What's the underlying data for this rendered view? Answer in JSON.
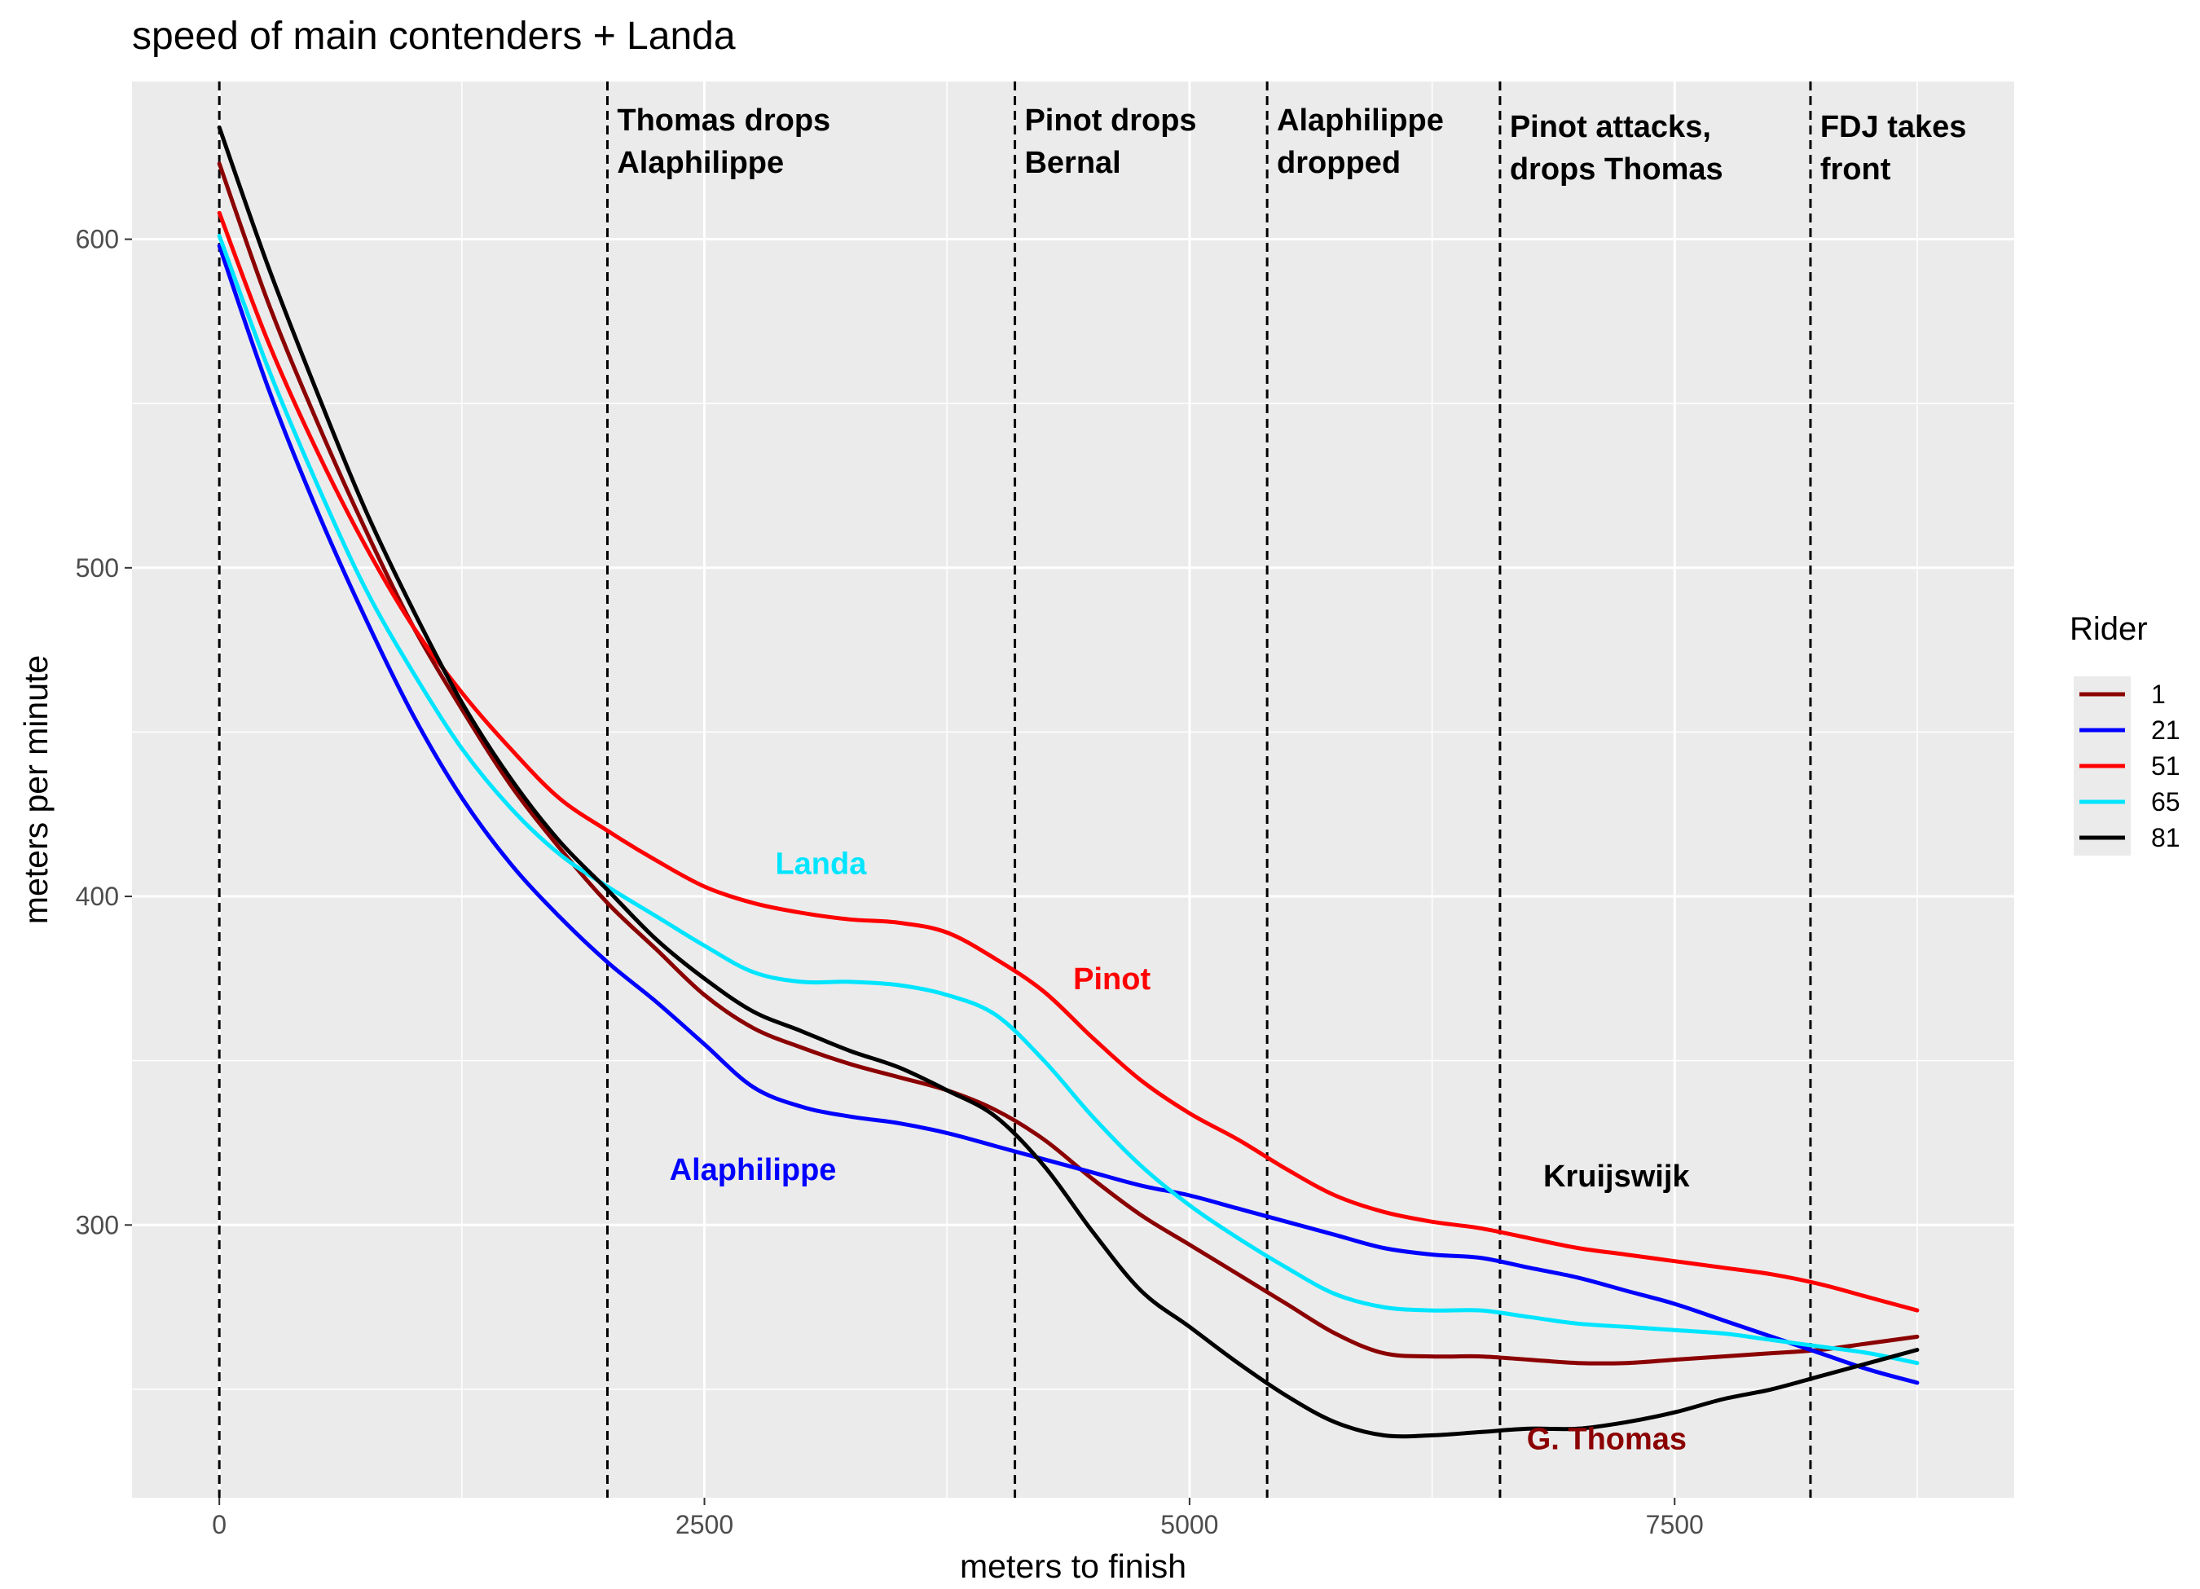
{
  "chart_data": {
    "type": "line",
    "title": "speed of main contenders + Landa",
    "xlabel": "meters to finish",
    "ylabel": "meters per minute",
    "xlim": [
      -450,
      9250
    ],
    "ylim": [
      217,
      648
    ],
    "x_ticks": [
      0,
      2500,
      5000,
      7500
    ],
    "x_minor": [
      1250,
      3750,
      6250,
      8750
    ],
    "y_ticks": [
      300,
      400,
      500,
      600
    ],
    "y_minor": [
      250,
      350,
      450,
      550
    ],
    "grid": true,
    "legend": {
      "title": "Rider",
      "position": "right",
      "entries": [
        "1",
        "21",
        "51",
        "65",
        "81"
      ]
    },
    "series": [
      {
        "name": "1",
        "color": "#8b0000",
        "x": [
          0,
          250,
          500,
          750,
          1000,
          1250,
          1500,
          1750,
          2000,
          2250,
          2500,
          2750,
          3000,
          3250,
          3500,
          3750,
          4000,
          4250,
          4500,
          4750,
          5000,
          5250,
          5500,
          5750,
          6000,
          6250,
          6500,
          6750,
          7000,
          7250,
          7500,
          7750,
          8000,
          8250,
          8500,
          8750
        ],
        "y": [
          623,
          581,
          545,
          512,
          482,
          457,
          434,
          415,
          398,
          384,
          370,
          360,
          354,
          349,
          345,
          341,
          335,
          326,
          314,
          303,
          294,
          285,
          276,
          267,
          261,
          260,
          260,
          259,
          258,
          258,
          259,
          260,
          261,
          262,
          264,
          266
        ]
      },
      {
        "name": "21",
        "color": "#0000ff",
        "x": [
          0,
          250,
          500,
          750,
          1000,
          1250,
          1500,
          1750,
          2000,
          2250,
          2500,
          2750,
          3000,
          3250,
          3500,
          3750,
          4000,
          4250,
          4500,
          4750,
          5000,
          5250,
          5500,
          5750,
          6000,
          6250,
          6500,
          6750,
          7000,
          7250,
          7500,
          7750,
          8000,
          8250,
          8500,
          8750
        ],
        "y": [
          598,
          555,
          518,
          485,
          455,
          430,
          410,
          394,
          380,
          368,
          355,
          342,
          336,
          333,
          331,
          328,
          324,
          320,
          316,
          312,
          309,
          305,
          301,
          297,
          293,
          291,
          290,
          287,
          284,
          280,
          276,
          271,
          266,
          261,
          256,
          252
        ]
      },
      {
        "name": "51",
        "color": "#ff0000",
        "x": [
          0,
          250,
          500,
          750,
          1000,
          1250,
          1500,
          1750,
          2000,
          2250,
          2500,
          2750,
          3000,
          3250,
          3500,
          3750,
          4000,
          4250,
          4500,
          4750,
          5000,
          5250,
          5500,
          5750,
          6000,
          6250,
          6500,
          6750,
          7000,
          7250,
          7500,
          7750,
          8000,
          8250,
          8500,
          8750
        ],
        "y": [
          608,
          569,
          536,
          507,
          482,
          462,
          445,
          430,
          420,
          411,
          403,
          398,
          395,
          393,
          392,
          389,
          381,
          371,
          357,
          344,
          334,
          326,
          317,
          309,
          304,
          301,
          299,
          296,
          293,
          291,
          289,
          287,
          285,
          282,
          278,
          274
        ]
      },
      {
        "name": "65",
        "color": "#00e5ff",
        "x": [
          0,
          250,
          500,
          750,
          1000,
          1250,
          1500,
          1750,
          2000,
          2250,
          2500,
          2750,
          3000,
          3250,
          3500,
          3750,
          4000,
          4250,
          4500,
          4750,
          5000,
          5250,
          5500,
          5750,
          6000,
          6250,
          6500,
          6750,
          7000,
          7250,
          7500,
          7750,
          8000,
          8250,
          8500,
          8750
        ],
        "y": [
          601,
          561,
          526,
          494,
          468,
          445,
          427,
          413,
          403,
          394,
          385,
          377,
          374,
          374,
          373,
          370,
          364,
          350,
          333,
          318,
          306,
          296,
          287,
          279,
          275,
          274,
          274,
          272,
          270,
          269,
          268,
          267,
          265,
          263,
          261,
          258
        ]
      },
      {
        "name": "81",
        "color": "#000000",
        "x": [
          0,
          250,
          500,
          750,
          1000,
          1250,
          1500,
          1750,
          2000,
          2250,
          2500,
          2750,
          3000,
          3250,
          3500,
          3750,
          4000,
          4250,
          4500,
          4750,
          5000,
          5250,
          5500,
          5750,
          6000,
          6250,
          6500,
          6750,
          7000,
          7250,
          7500,
          7750,
          8000,
          8250,
          8500,
          8750
        ],
        "y": [
          634,
          592,
          554,
          518,
          487,
          459,
          436,
          417,
          402,
          387,
          375,
          365,
          359,
          353,
          348,
          341,
          333,
          318,
          298,
          280,
          269,
          258,
          248,
          240,
          236,
          236,
          237,
          238,
          238,
          240,
          243,
          247,
          250,
          254,
          258,
          262
        ]
      }
    ],
    "vlines": [
      0,
      2000,
      4100,
      5400,
      6600,
      8200
    ],
    "annotations": [
      {
        "x": 2050,
        "lines": [
          "Thomas drops",
          "Alaphilippe"
        ]
      },
      {
        "x": 4150,
        "lines": [
          "Pinot drops",
          "Bernal"
        ]
      },
      {
        "x": 5450,
        "lines": [
          "Alaphilippe",
          "dropped"
        ]
      },
      {
        "x": 6650,
        "lines": [
          "Pinot attacks,",
          "drops Thomas"
        ],
        "shifted": true
      },
      {
        "x": 8250,
        "lines": [
          "FDJ takes",
          "front"
        ],
        "shifted": true
      }
    ],
    "series_labels": [
      {
        "text": "Landa",
        "x": 3100,
        "y": 410,
        "color": "#00e5ff"
      },
      {
        "text": "Pinot",
        "x": 4600,
        "y": 375,
        "color": "#ff0000"
      },
      {
        "text": "Alaphilippe",
        "x": 2750,
        "y": 317,
        "color": "#0000ff"
      },
      {
        "text": "Kruijswijk",
        "x": 7200,
        "y": 315,
        "color": "#000000"
      },
      {
        "text": "G. Thomas",
        "x": 7150,
        "y": 235,
        "color": "#8b0000"
      }
    ]
  }
}
